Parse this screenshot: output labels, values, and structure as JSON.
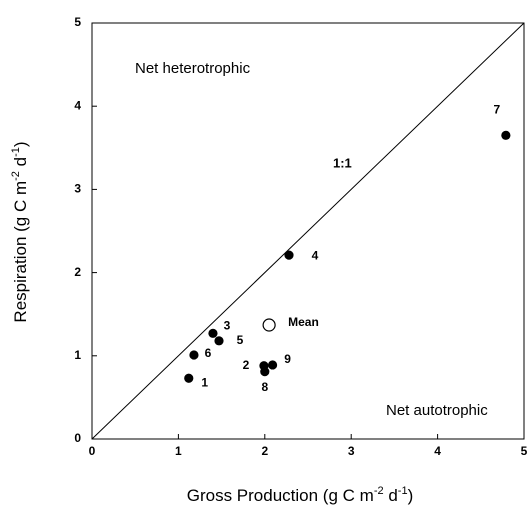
{
  "chart_data": {
    "type": "scatter",
    "xlabel": [
      "Gross Production (g C m",
      "-2",
      " d",
      "-1",
      ")"
    ],
    "ylabel": [
      "Respiration  (g C m",
      "-2",
      " d",
      "-1",
      ")"
    ],
    "xlim": [
      0,
      5
    ],
    "ylim": [
      0,
      5
    ],
    "xticks": [
      0,
      1,
      2,
      3,
      4,
      5
    ],
    "yticks": [
      0,
      1,
      2,
      3,
      4,
      5
    ],
    "series": [
      {
        "x": [
          1.12,
          1.99,
          1.4,
          2.28,
          1.47,
          1.18,
          4.79,
          2.0,
          2.09
        ],
        "values": [
          0.73,
          0.88,
          1.27,
          2.21,
          1.18,
          1.01,
          3.65,
          0.81,
          0.89
        ],
        "point_labels": [
          "1",
          "2",
          "3",
          "4",
          "5",
          "6",
          "7",
          "8",
          "9"
        ],
        "color": "#000000",
        "marker": "filled"
      },
      {
        "name": "Mean",
        "x": [
          2.05
        ],
        "values": [
          1.37
        ],
        "color": "#000000",
        "marker": "open"
      }
    ],
    "annotations": [
      "Net heterotrophic",
      "Net autotrophic",
      "1:1"
    ]
  }
}
